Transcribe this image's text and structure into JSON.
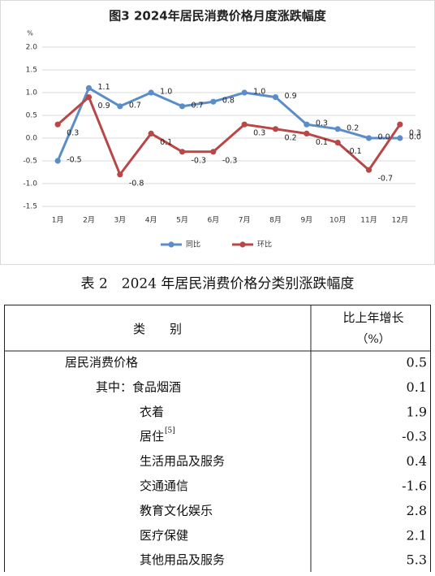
{
  "chart_data": {
    "type": "line",
    "title": "图3 2024年居民消费价格月度涨跌幅度",
    "y_label": "%",
    "categories": [
      "1月",
      "2月",
      "3月",
      "4月",
      "5月",
      "6月",
      "7月",
      "8月",
      "9月",
      "10月",
      "11月",
      "12月"
    ],
    "series": [
      {
        "name": "同比",
        "color": "#5b8ec8",
        "values": [
          -0.5,
          1.1,
          0.7,
          1.0,
          0.7,
          0.8,
          1.0,
          0.9,
          0.3,
          0.2,
          0.0,
          0.0
        ],
        "value_labels": [
          "-0.5",
          "1.1",
          "0.7",
          "1.0",
          "0.7",
          "0.8",
          "1.0",
          "0.9",
          "0.3",
          "0.2",
          "0.0",
          "0.0"
        ]
      },
      {
        "name": "环比",
        "color": "#b94747",
        "values": [
          0.3,
          0.9,
          -0.8,
          0.1,
          -0.3,
          -0.3,
          0.3,
          0.2,
          0.1,
          -0.1,
          -0.7,
          0.3
        ]
      }
    ],
    "ylim": [
      -1.5,
      2.0
    ],
    "yticks": [
      {
        "value": 2.0,
        "label": "2.0"
      },
      1.5,
      {
        "value": 1.0,
        "label": "1.0"
      },
      0.5,
      {
        "value": 0.0,
        "label": "0.0"
      },
      -0.5,
      {
        "value": -1.0,
        "label": "-1.0"
      },
      -1.5
    ],
    "grid": true,
    "legend": "bottom"
  },
  "table": {
    "title": "表 2　2024 年居民消费价格分类别涨跌幅度",
    "header": [
      "类　　别",
      "比上年增长",
      "（%）"
    ],
    "rows": [
      [
        "居民消费价格",
        "0.5"
      ],
      [
        "其中：食品烟酒",
        "0.1"
      ],
      [
        "衣着",
        "1.9"
      ],
      [
        "居住",
        "-0.3",
        "[5]"
      ],
      [
        "生活用品及服务",
        "0.4"
      ],
      [
        "交通通信",
        "-1.6"
      ],
      [
        "教育文化娱乐",
        "2.8"
      ],
      [
        "医疗保健",
        "2.1"
      ],
      [
        "其他用品及服务",
        "5.3"
      ]
    ]
  }
}
